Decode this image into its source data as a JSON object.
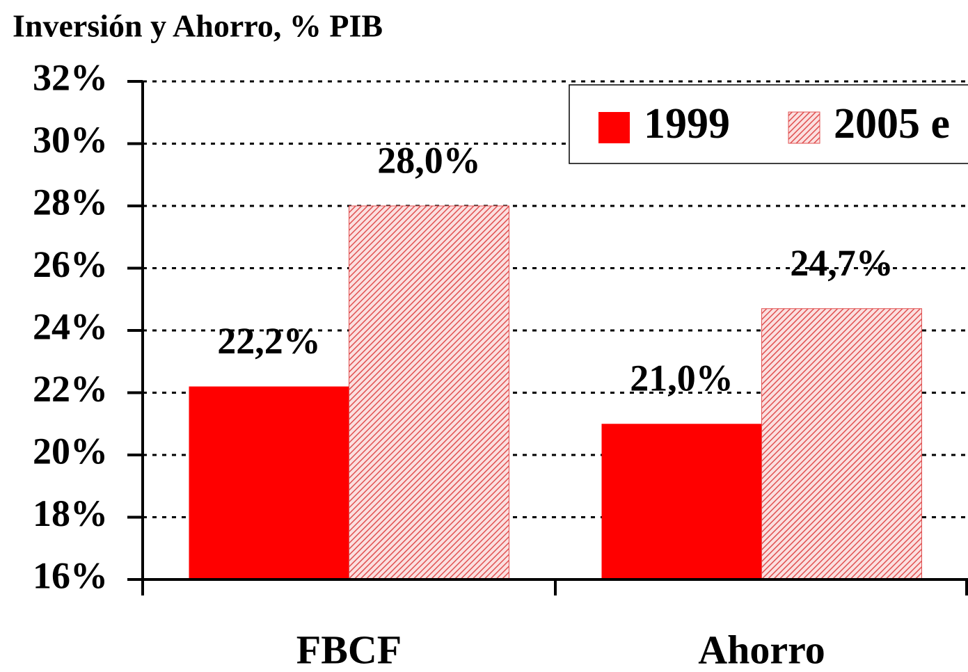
{
  "chart_data": {
    "type": "bar",
    "title": "Inversión y Ahorro, % PIB",
    "categories": [
      "FBCF",
      "Ahorro"
    ],
    "series": [
      {
        "name": "1999",
        "color": "#ff0000",
        "values": [
          22.2,
          21.0
        ],
        "value_labels": [
          "22,2%",
          "21,0%"
        ]
      },
      {
        "name": "2005 e",
        "color": "#e05050",
        "pattern": "hatch",
        "values": [
          28.0,
          24.7
        ],
        "value_labels": [
          "28,0%",
          "24,7%"
        ]
      }
    ],
    "ylim": [
      16,
      32
    ],
    "yticks": [
      {
        "value": 16,
        "label": "16%"
      },
      {
        "value": 18,
        "label": "18%"
      },
      {
        "value": 20,
        "label": "20%"
      },
      {
        "value": 22,
        "label": "22%"
      },
      {
        "value": 24,
        "label": "24%"
      },
      {
        "value": 26,
        "label": "26%"
      },
      {
        "value": 28,
        "label": "28%"
      },
      {
        "value": 30,
        "label": "30%"
      },
      {
        "value": 32,
        "label": "32%"
      }
    ],
    "grid": true,
    "legend": "top-right"
  }
}
